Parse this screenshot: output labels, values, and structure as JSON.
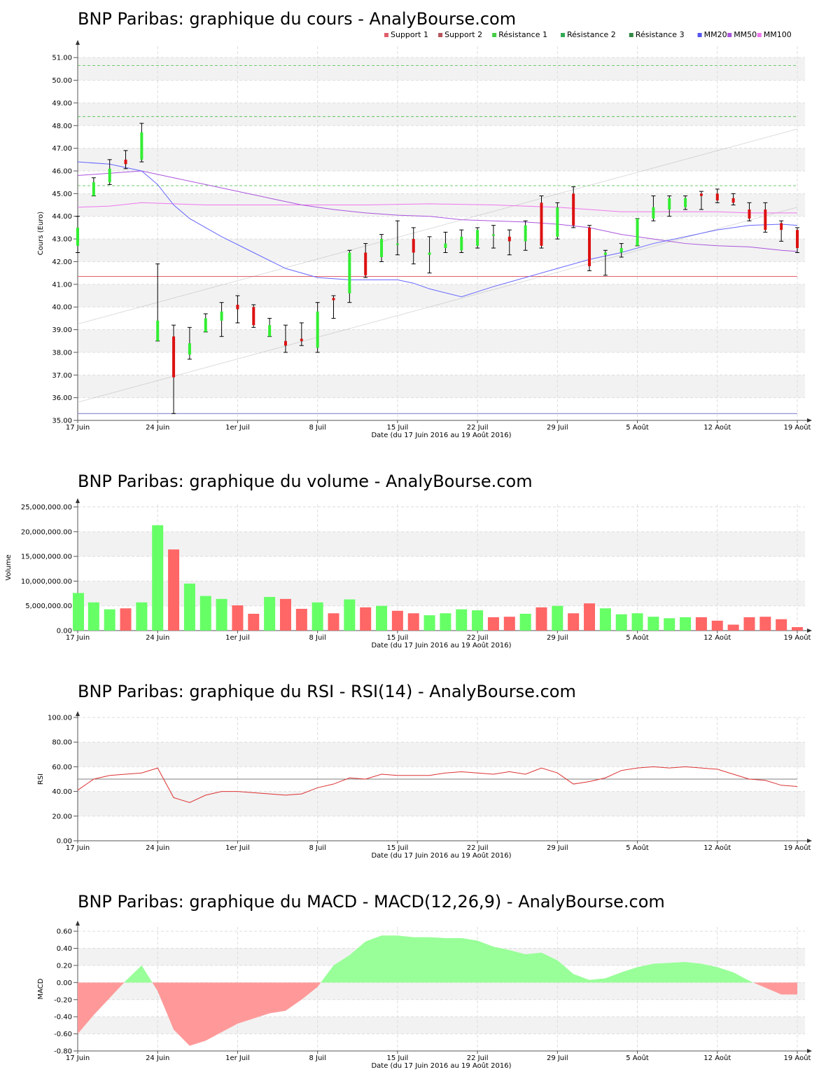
{
  "colors": {
    "up": "#33ee33",
    "down": "#dd1111",
    "vol_up": "#66ff66",
    "vol_down": "#ff6666",
    "support1": "#e05f6c",
    "resistance": "#44bb44",
    "mm20": "#6666ff",
    "mm50": "#aa55dd",
    "mm100": "#ee77ee",
    "rsi": "#dd3333",
    "macd_pos": "#99ff99",
    "macd_neg": "#ff9999",
    "band": "#f2f2f2"
  },
  "x_ticks": [
    {
      "i": 0,
      "label": "17 Juin"
    },
    {
      "i": 5,
      "label": "24 Juin"
    },
    {
      "i": 10,
      "label": "1er Juil"
    },
    {
      "i": 15,
      "label": "8 Juil"
    },
    {
      "i": 20,
      "label": "15 Juil"
    },
    {
      "i": 25,
      "label": "22 Juil"
    },
    {
      "i": 30,
      "label": "29 Juil"
    },
    {
      "i": 35,
      "label": "5 Août"
    },
    {
      "i": 40,
      "label": "12 Août"
    },
    {
      "i": 45,
      "label": "19 Août"
    }
  ],
  "x_label": "Date (du 17 Juin 2016 au 19 Août 2016)",
  "legend": [
    {
      "label": "Support 1",
      "color": "#e05f6c"
    },
    {
      "label": "Support 2",
      "color": "#b5545c"
    },
    {
      "label": "Résistance 1",
      "color": "#44cc44"
    },
    {
      "label": "Résistance 2",
      "color": "#33aa55"
    },
    {
      "label": "Résistance 3",
      "color": "#338844"
    },
    {
      "label": "MM20",
      "color": "#5555ee"
    },
    {
      "label": "MM50",
      "color": "#aa55dd"
    },
    {
      "label": "MM100",
      "color": "#ee77ee"
    }
  ],
  "chart_data": [
    {
      "type": "candlestick",
      "title": "BNP Paribas: graphique du cours - AnalyBourse.com",
      "ylabel": "Cours (Euro)",
      "ylim": [
        35,
        51.5
      ],
      "yticks": [
        "35.00",
        "36.00",
        "37.00",
        "38.00",
        "39.00",
        "40.00",
        "41.00",
        "42.00",
        "43.00",
        "44.00",
        "45.00",
        "46.00",
        "47.00",
        "48.00",
        "49.00",
        "50.00",
        "51.00"
      ],
      "candles": [
        {
          "o": 42.7,
          "h": 44.0,
          "l": 42.4,
          "c": 43.5
        },
        {
          "o": 44.9,
          "h": 45.7,
          "l": 44.9,
          "c": 45.5
        },
        {
          "o": 45.5,
          "h": 46.5,
          "l": 45.4,
          "c": 46.1
        },
        {
          "o": 46.5,
          "h": 46.9,
          "l": 46.1,
          "c": 46.3
        },
        {
          "o": 46.5,
          "h": 48.1,
          "l": 46.4,
          "c": 47.7
        },
        {
          "o": 38.5,
          "h": 41.9,
          "l": 38.5,
          "c": 39.4
        },
        {
          "o": 38.7,
          "h": 39.2,
          "l": 35.3,
          "c": 36.9
        },
        {
          "o": 37.9,
          "h": 39.1,
          "l": 37.7,
          "c": 38.4
        },
        {
          "o": 38.9,
          "h": 39.7,
          "l": 38.9,
          "c": 39.5
        },
        {
          "o": 39.4,
          "h": 40.2,
          "l": 38.7,
          "c": 39.8
        },
        {
          "o": 40.1,
          "h": 40.5,
          "l": 39.3,
          "c": 39.9
        },
        {
          "o": 40.0,
          "h": 40.1,
          "l": 39.1,
          "c": 39.2
        },
        {
          "o": 38.7,
          "h": 39.5,
          "l": 38.7,
          "c": 39.2
        },
        {
          "o": 38.5,
          "h": 39.2,
          "l": 38.0,
          "c": 38.3
        },
        {
          "o": 38.6,
          "h": 39.3,
          "l": 38.3,
          "c": 38.5
        },
        {
          "o": 38.2,
          "h": 40.2,
          "l": 38.0,
          "c": 39.8
        },
        {
          "o": 40.4,
          "h": 40.5,
          "l": 39.5,
          "c": 40.3
        },
        {
          "o": 40.6,
          "h": 42.5,
          "l": 40.2,
          "c": 42.4
        },
        {
          "o": 42.4,
          "h": 42.8,
          "l": 41.3,
          "c": 41.4
        },
        {
          "o": 42.2,
          "h": 43.2,
          "l": 42.0,
          "c": 43.0
        },
        {
          "o": 42.8,
          "h": 43.8,
          "l": 42.3,
          "c": 42.8
        },
        {
          "o": 43.0,
          "h": 43.5,
          "l": 41.9,
          "c": 42.4
        },
        {
          "o": 42.3,
          "h": 43.1,
          "l": 41.5,
          "c": 42.4
        },
        {
          "o": 42.6,
          "h": 43.3,
          "l": 42.4,
          "c": 42.8
        },
        {
          "o": 42.5,
          "h": 43.4,
          "l": 42.4,
          "c": 43.1
        },
        {
          "o": 42.7,
          "h": 43.5,
          "l": 42.6,
          "c": 43.4
        },
        {
          "o": 43.2,
          "h": 43.6,
          "l": 42.6,
          "c": 43.2
        },
        {
          "o": 43.1,
          "h": 43.4,
          "l": 42.3,
          "c": 42.9
        },
        {
          "o": 42.9,
          "h": 43.8,
          "l": 42.5,
          "c": 43.6
        },
        {
          "o": 44.6,
          "h": 44.9,
          "l": 42.6,
          "c": 42.7
        },
        {
          "o": 43.1,
          "h": 44.6,
          "l": 43.0,
          "c": 44.4
        },
        {
          "o": 45.0,
          "h": 45.3,
          "l": 43.5,
          "c": 43.6
        },
        {
          "o": 43.5,
          "h": 43.6,
          "l": 41.6,
          "c": 41.8
        },
        {
          "o": 42.3,
          "h": 42.5,
          "l": 41.4,
          "c": 42.4
        },
        {
          "o": 42.4,
          "h": 42.8,
          "l": 42.2,
          "c": 42.6
        },
        {
          "o": 42.7,
          "h": 43.9,
          "l": 42.7,
          "c": 43.9
        },
        {
          "o": 43.9,
          "h": 44.9,
          "l": 43.8,
          "c": 44.4
        },
        {
          "o": 44.3,
          "h": 44.9,
          "l": 44.0,
          "c": 44.8
        },
        {
          "o": 44.4,
          "h": 44.9,
          "l": 44.3,
          "c": 44.8
        },
        {
          "o": 45.0,
          "h": 45.1,
          "l": 44.3,
          "c": 44.9
        },
        {
          "o": 45.0,
          "h": 45.2,
          "l": 44.6,
          "c": 44.7
        },
        {
          "o": 44.8,
          "h": 45.0,
          "l": 44.5,
          "c": 44.6
        },
        {
          "o": 44.3,
          "h": 44.6,
          "l": 43.8,
          "c": 43.9
        },
        {
          "o": 44.3,
          "h": 44.6,
          "l": 43.3,
          "c": 43.4
        },
        {
          "o": 43.7,
          "h": 43.8,
          "l": 42.9,
          "c": 43.4
        },
        {
          "o": 43.4,
          "h": 43.5,
          "l": 42.4,
          "c": 42.6
        }
      ],
      "support1": 41.35,
      "support2": 35.3,
      "resistance1": 45.35,
      "resistance2": 48.4,
      "resistance3": 50.65,
      "mm20": [
        [
          0,
          46.4
        ],
        [
          2,
          46.3
        ],
        [
          4,
          46.0
        ],
        [
          5,
          45.4
        ],
        [
          6,
          44.5
        ],
        [
          7,
          43.9
        ],
        [
          9,
          43.1
        ],
        [
          11,
          42.4
        ],
        [
          13,
          41.7
        ],
        [
          15,
          41.3
        ],
        [
          17,
          41.2
        ],
        [
          18,
          41.2
        ],
        [
          20,
          41.2
        ],
        [
          21,
          41.05
        ],
        [
          22,
          40.8
        ],
        [
          24,
          40.45
        ],
        [
          26,
          40.9
        ],
        [
          28,
          41.3
        ],
        [
          30,
          41.7
        ],
        [
          32,
          42.1
        ],
        [
          34,
          42.4
        ],
        [
          36,
          42.8
        ],
        [
          38,
          43.1
        ],
        [
          40,
          43.4
        ],
        [
          42,
          43.6
        ],
        [
          44,
          43.65
        ],
        [
          45,
          43.6
        ]
      ],
      "mm50": [
        [
          0,
          45.8
        ],
        [
          2,
          45.9
        ],
        [
          4,
          46.0
        ],
        [
          6,
          45.7
        ],
        [
          8,
          45.4
        ],
        [
          10,
          45.1
        ],
        [
          12,
          44.8
        ],
        [
          14,
          44.5
        ],
        [
          16,
          44.3
        ],
        [
          18,
          44.15
        ],
        [
          20,
          44.05
        ],
        [
          22,
          44.0
        ],
        [
          24,
          43.85
        ],
        [
          26,
          43.8
        ],
        [
          28,
          43.75
        ],
        [
          30,
          43.65
        ],
        [
          32,
          43.5
        ],
        [
          34,
          43.2
        ],
        [
          36,
          43.0
        ],
        [
          38,
          42.8
        ],
        [
          40,
          42.7
        ],
        [
          42,
          42.65
        ],
        [
          44,
          42.5
        ],
        [
          45,
          42.45
        ]
      ],
      "mm100": [
        [
          0,
          44.4
        ],
        [
          2,
          44.45
        ],
        [
          4,
          44.6
        ],
        [
          6,
          44.55
        ],
        [
          8,
          44.5
        ],
        [
          10,
          44.5
        ],
        [
          14,
          44.5
        ],
        [
          18,
          44.5
        ],
        [
          22,
          44.55
        ],
        [
          26,
          44.5
        ],
        [
          30,
          44.4
        ],
        [
          32,
          44.3
        ],
        [
          34,
          44.2
        ],
        [
          36,
          44.2
        ],
        [
          38,
          44.2
        ],
        [
          40,
          44.2
        ],
        [
          42,
          44.15
        ],
        [
          45,
          44.15
        ]
      ],
      "channel_upper": [
        [
          0,
          39.25
        ],
        [
          45,
          47.85
        ]
      ],
      "channel_lower": [
        [
          0,
          35.8
        ],
        [
          45,
          44.4
        ]
      ]
    },
    {
      "type": "bar",
      "title": "BNP Paribas: graphique du volume - AnalyBourse.com",
      "ylabel": "Volume",
      "ylim": [
        0,
        25500000
      ],
      "yticks": [
        "0.00",
        "5,000,000.00",
        "10,000,000.00",
        "15,000,000.00",
        "20,000,000.00",
        "25,000,000.00"
      ],
      "values": [
        7600000,
        5700000,
        4300000,
        4500000,
        5700000,
        21300000,
        16400000,
        9500000,
        7000000,
        6400000,
        5100000,
        3400000,
        6800000,
        6400000,
        4400000,
        5700000,
        3500000,
        6300000,
        4700000,
        5000000,
        4000000,
        3500000,
        3100000,
        3500000,
        4300000,
        4100000,
        2700000,
        2800000,
        3400000,
        4700000,
        5000000,
        3500000,
        5500000,
        4500000,
        3300000,
        3500000,
        2800000,
        2500000,
        2700000,
        2700000,
        2000000,
        1200000,
        2700000,
        2800000,
        2300000,
        700000
      ],
      "directions": [
        "u",
        "u",
        "u",
        "d",
        "u",
        "u",
        "d",
        "u",
        "u",
        "u",
        "d",
        "d",
        "u",
        "d",
        "d",
        "u",
        "d",
        "u",
        "d",
        "u",
        "d",
        "d",
        "u",
        "u",
        "u",
        "u",
        "d",
        "d",
        "u",
        "d",
        "u",
        "d",
        "d",
        "u",
        "u",
        "u",
        "u",
        "u",
        "u",
        "d",
        "d",
        "d",
        "d",
        "d",
        "d",
        "d"
      ]
    },
    {
      "type": "line",
      "title": "BNP Paribas: graphique du RSI - RSI(14) - AnalyBourse.com",
      "ylabel": "RSI",
      "ylim": [
        0,
        100
      ],
      "yticks": [
        "0.00",
        "20.00",
        "40.00",
        "60.00",
        "80.00",
        "100.00"
      ],
      "reference": 50,
      "values": [
        41,
        50,
        53,
        54,
        55,
        59,
        35,
        31,
        37,
        40,
        40,
        39,
        38,
        37,
        38,
        43,
        46,
        51,
        50,
        54,
        53,
        53,
        53,
        55,
        56,
        55,
        54,
        56,
        54,
        59,
        55,
        46,
        48,
        51,
        57,
        59,
        60,
        59,
        60,
        59,
        58,
        54,
        50,
        49,
        45,
        44
      ]
    },
    {
      "type": "area",
      "title": "BNP Paribas: graphique du MACD - MACD(12,26,9) - AnalyBourse.com",
      "ylabel": "MACD",
      "ylim": [
        -0.8,
        0.65
      ],
      "yticks": [
        "-0.80",
        "-0.60",
        "-0.40",
        "-0.20",
        "0.00",
        "0.20",
        "0.40",
        "0.60"
      ],
      "values": [
        -0.6,
        -0.38,
        -0.18,
        0.02,
        0.2,
        -0.1,
        -0.55,
        -0.74,
        -0.68,
        -0.58,
        -0.48,
        -0.42,
        -0.36,
        -0.33,
        -0.2,
        -0.05,
        0.2,
        0.32,
        0.48,
        0.55,
        0.55,
        0.53,
        0.53,
        0.52,
        0.52,
        0.49,
        0.42,
        0.38,
        0.33,
        0.35,
        0.26,
        0.1,
        0.03,
        0.05,
        0.12,
        0.18,
        0.22,
        0.23,
        0.24,
        0.22,
        0.18,
        0.12,
        0.02,
        -0.06,
        -0.14,
        -0.14
      ]
    }
  ]
}
